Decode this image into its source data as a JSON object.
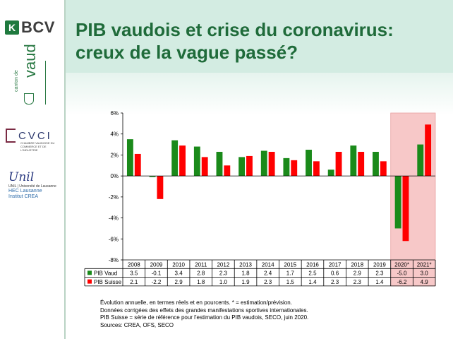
{
  "title_line1": "PIB vaudois et crise du coronavirus:",
  "title_line2": "creux de la vague passé?",
  "logos": {
    "bcv_mark": "K",
    "bcv_name": "BCV",
    "vaud_name": "vaud",
    "vaud_small": "canton de",
    "cvci_name": "CVCI",
    "cvci_sub": "CHAMBRE VAUDOISE DU COMMERCE ET DE L'INDUSTRIE",
    "unil_script": "Unil",
    "unil_sub": "UNIL | Université de Lausanne",
    "unil_hec1": "HEC Lausanne",
    "unil_hec2": "Institut CREA"
  },
  "colors": {
    "vaud": "#1a8a1a",
    "suisse": "#ff0000",
    "highlight": "#f7c8c8",
    "title": "#1f6b3a"
  },
  "chart_data": {
    "type": "bar",
    "categories": [
      "2008",
      "2009",
      "2010",
      "2011",
      "2012",
      "2013",
      "2014",
      "2015",
      "2016",
      "2017",
      "2018",
      "2019",
      "2020*",
      "2021*"
    ],
    "series": [
      {
        "name": "PIB Vaud",
        "values": [
          3.5,
          -0.1,
          3.4,
          2.8,
          2.3,
          1.8,
          2.4,
          1.7,
          2.5,
          0.6,
          2.9,
          2.3,
          -5.0,
          3.0
        ],
        "labels": [
          "3.5",
          "-0.1",
          "3.4",
          "2.8",
          "2.3",
          "1.8",
          "2.4",
          "1.7",
          "2.5",
          "0.6",
          "2.9",
          "2.3",
          "-5.0",
          "3.0"
        ]
      },
      {
        "name": "PIB Suisse",
        "values": [
          2.1,
          -2.2,
          2.9,
          1.8,
          1.0,
          1.9,
          2.3,
          1.5,
          1.4,
          2.3,
          2.3,
          1.4,
          -6.2,
          4.9
        ],
        "labels": [
          "2.1",
          "-2.2",
          "2.9",
          "1.8",
          "1.0",
          "1.9",
          "2.3",
          "1.5",
          "1.4",
          "2.3",
          "2.3",
          "1.4",
          "-6.2",
          "4.9"
        ]
      }
    ],
    "ylim": [
      -8,
      6
    ],
    "yticks": [
      "6%",
      "4%",
      "2%",
      "0%",
      "-2%",
      "-4%",
      "-6%",
      "-8%"
    ],
    "highlighted_categories": [
      "2020*",
      "2021*"
    ],
    "title": "",
    "xlabel": "",
    "ylabel": ""
  },
  "notes": [
    "Évolution annuelle, en termes réels et en pourcents. * = estimation/prévision.",
    "Données corrigées des effets des grandes manifestations sportives internationales.",
    "PIB Suisse = série de référence pour l'estimation du PIB vaudois, SECO, juin 2020.",
    "Sources: CREA, OFS, SECO"
  ]
}
